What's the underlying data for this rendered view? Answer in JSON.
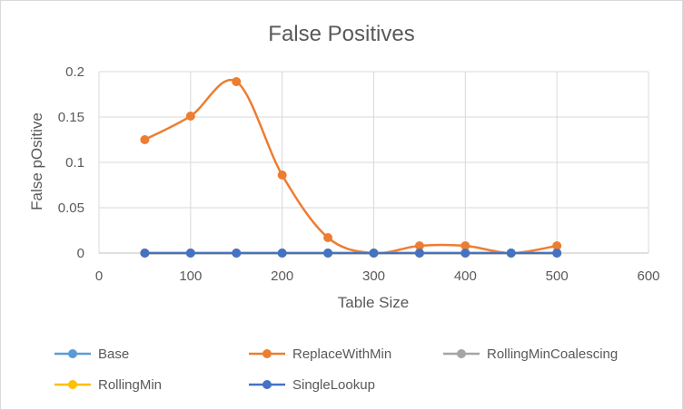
{
  "chart_data": {
    "type": "line",
    "title": "False Positives",
    "xlabel": "Table Size",
    "ylabel": "False pOsitive",
    "xlim": [
      0,
      600
    ],
    "ylim": [
      0,
      0.2
    ],
    "x_ticks": [
      0,
      100,
      200,
      300,
      400,
      500,
      600
    ],
    "y_ticks": [
      0,
      0.05,
      0.1,
      0.15,
      0.2
    ],
    "x_tick_labels": [
      "0",
      "100",
      "200",
      "300",
      "400",
      "500",
      "600"
    ],
    "y_tick_labels": [
      "0",
      "0.05",
      "0.1",
      "0.15",
      "0.2"
    ],
    "grid": "major-both",
    "legend_position": "bottom",
    "x": [
      50,
      100,
      150,
      200,
      250,
      300,
      350,
      400,
      450,
      500
    ],
    "series": [
      {
        "name": "Base",
        "color": "#5b9bd5",
        "values": [
          0,
          0,
          0,
          0,
          0,
          0,
          0,
          0,
          0,
          0
        ]
      },
      {
        "name": "ReplaceWithMin",
        "color": "#ed7d31",
        "values": [
          0.125,
          0.151,
          0.189,
          0.086,
          0.017,
          0,
          0.008,
          0.008,
          0,
          0.008
        ]
      },
      {
        "name": "RollingMinCoalescing",
        "color": "#a5a5a5",
        "values": [
          0,
          0,
          0,
          0,
          0,
          0,
          0,
          0,
          0,
          0
        ]
      },
      {
        "name": "RollingMin",
        "color": "#ffc000",
        "values": [
          0,
          0,
          0,
          0,
          0,
          0,
          0,
          0,
          0,
          0
        ]
      },
      {
        "name": "SingleLookup",
        "color": "#4472c4",
        "values": [
          0,
          0,
          0,
          0,
          0,
          0,
          0,
          0,
          0,
          0
        ]
      }
    ]
  }
}
